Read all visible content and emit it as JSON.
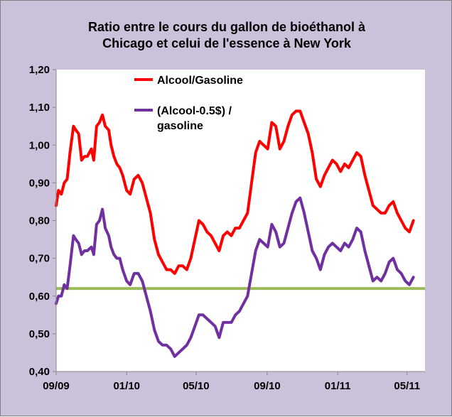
{
  "chart_data": {
    "type": "line",
    "title": [
      "Ratio entre le cours du gallon de bioéthanol  à",
      "Chicago  et celui  de l'essence à New York"
    ],
    "xlabel": "",
    "ylabel": "",
    "ylim": [
      0.4,
      1.2
    ],
    "yticks": [
      "0,40",
      "0,50",
      "0,60",
      "0,70",
      "0,80",
      "0,90",
      "1,00",
      "1,10",
      "1,20"
    ],
    "xlim": [
      "2009-09",
      "2011-06"
    ],
    "xticks": [
      "09/09",
      "01/10",
      "05/10",
      "09/10",
      "01/11",
      "05/11"
    ],
    "grid": false,
    "legend": "top-left (inside plot)",
    "reference_line": {
      "y": 0.62,
      "color": "#9bbb59"
    },
    "series": [
      {
        "name": "Alcool/Gasoline",
        "color": "#ff0000",
        "x": [
          "2009-09-01",
          "2009-09-05",
          "2009-09-10",
          "2009-09-15",
          "2009-09-20",
          "2009-09-25",
          "2009-10-01",
          "2009-10-05",
          "2009-10-10",
          "2009-10-15",
          "2009-10-20",
          "2009-10-25",
          "2009-11-01",
          "2009-11-05",
          "2009-11-10",
          "2009-11-15",
          "2009-11-20",
          "2009-11-25",
          "2009-12-01",
          "2009-12-05",
          "2009-12-10",
          "2009-12-15",
          "2009-12-20",
          "2009-12-25",
          "2010-01-01",
          "2010-01-07",
          "2010-01-14",
          "2010-01-21",
          "2010-01-28",
          "2010-02-04",
          "2010-02-11",
          "2010-02-18",
          "2010-02-25",
          "2010-03-04",
          "2010-03-11",
          "2010-03-18",
          "2010-03-25",
          "2010-04-01",
          "2010-04-08",
          "2010-04-15",
          "2010-04-22",
          "2010-04-29",
          "2010-05-06",
          "2010-05-13",
          "2010-05-20",
          "2010-05-27",
          "2010-06-03",
          "2010-06-10",
          "2010-06-17",
          "2010-06-24",
          "2010-07-01",
          "2010-07-08",
          "2010-07-15",
          "2010-07-22",
          "2010-07-29",
          "2010-08-05",
          "2010-08-12",
          "2010-08-19",
          "2010-08-26",
          "2010-09-02",
          "2010-09-09",
          "2010-09-16",
          "2010-09-23",
          "2010-09-30",
          "2010-10-07",
          "2010-10-14",
          "2010-10-21",
          "2010-10-28",
          "2010-11-04",
          "2010-11-11",
          "2010-11-18",
          "2010-11-25",
          "2010-12-02",
          "2010-12-09",
          "2010-12-16",
          "2010-12-23",
          "2010-12-30",
          "2011-01-06",
          "2011-01-13",
          "2011-01-20",
          "2011-01-27",
          "2011-02-03",
          "2011-02-10",
          "2011-02-17",
          "2011-02-24",
          "2011-03-03",
          "2011-03-10",
          "2011-03-17",
          "2011-03-24",
          "2011-03-31",
          "2011-04-07",
          "2011-04-14",
          "2011-04-21",
          "2011-04-28",
          "2011-05-05",
          "2011-05-12"
        ],
        "y": [
          0.84,
          0.88,
          0.87,
          0.9,
          0.91,
          0.98,
          1.05,
          1.04,
          1.03,
          0.96,
          0.97,
          0.97,
          0.99,
          0.96,
          1.05,
          1.06,
          1.08,
          1.05,
          1.04,
          1.0,
          0.97,
          0.95,
          0.94,
          0.92,
          0.88,
          0.87,
          0.91,
          0.92,
          0.9,
          0.86,
          0.82,
          0.75,
          0.71,
          0.69,
          0.67,
          0.67,
          0.66,
          0.68,
          0.68,
          0.67,
          0.7,
          0.75,
          0.8,
          0.79,
          0.77,
          0.76,
          0.74,
          0.72,
          0.76,
          0.77,
          0.76,
          0.78,
          0.78,
          0.8,
          0.82,
          0.9,
          0.98,
          1.01,
          1.0,
          0.99,
          1.06,
          1.05,
          0.99,
          1.01,
          1.05,
          1.08,
          1.09,
          1.09,
          1.06,
          1.03,
          0.98,
          0.91,
          0.89,
          0.92,
          0.94,
          0.96,
          0.95,
          0.93,
          0.95,
          0.94,
          0.96,
          0.98,
          0.97,
          0.92,
          0.88,
          0.84,
          0.83,
          0.82,
          0.82,
          0.84,
          0.85,
          0.82,
          0.8,
          0.78,
          0.77,
          0.8
        ]
      },
      {
        "name": "(Alcool-0.5$) / gasoline",
        "color": "#7030a0",
        "x": [
          "2009-09-01",
          "2009-09-05",
          "2009-09-10",
          "2009-09-15",
          "2009-09-20",
          "2009-09-25",
          "2009-10-01",
          "2009-10-05",
          "2009-10-10",
          "2009-10-15",
          "2009-10-20",
          "2009-10-25",
          "2009-11-01",
          "2009-11-05",
          "2009-11-10",
          "2009-11-15",
          "2009-11-20",
          "2009-11-25",
          "2009-12-01",
          "2009-12-05",
          "2009-12-10",
          "2009-12-15",
          "2009-12-20",
          "2009-12-25",
          "2010-01-01",
          "2010-01-07",
          "2010-01-14",
          "2010-01-21",
          "2010-01-28",
          "2010-02-04",
          "2010-02-11",
          "2010-02-18",
          "2010-02-25",
          "2010-03-04",
          "2010-03-11",
          "2010-03-18",
          "2010-03-25",
          "2010-04-01",
          "2010-04-08",
          "2010-04-15",
          "2010-04-22",
          "2010-04-29",
          "2010-05-06",
          "2010-05-13",
          "2010-05-20",
          "2010-05-27",
          "2010-06-03",
          "2010-06-10",
          "2010-06-17",
          "2010-06-24",
          "2010-07-01",
          "2010-07-08",
          "2010-07-15",
          "2010-07-22",
          "2010-07-29",
          "2010-08-05",
          "2010-08-12",
          "2010-08-19",
          "2010-08-26",
          "2010-09-02",
          "2010-09-09",
          "2010-09-16",
          "2010-09-23",
          "2010-09-30",
          "2010-10-07",
          "2010-10-14",
          "2010-10-21",
          "2010-10-28",
          "2010-11-04",
          "2010-11-11",
          "2010-11-18",
          "2010-11-25",
          "2010-12-02",
          "2010-12-09",
          "2010-12-16",
          "2010-12-23",
          "2010-12-30",
          "2011-01-06",
          "2011-01-13",
          "2011-01-20",
          "2011-01-27",
          "2011-02-03",
          "2011-02-10",
          "2011-02-17",
          "2011-02-24",
          "2011-03-03",
          "2011-03-10",
          "2011-03-17",
          "2011-03-24",
          "2011-03-31",
          "2011-04-07",
          "2011-04-14",
          "2011-04-21",
          "2011-04-28",
          "2011-05-05",
          "2011-05-12"
        ],
        "y": [
          0.58,
          0.6,
          0.6,
          0.63,
          0.62,
          0.68,
          0.76,
          0.75,
          0.74,
          0.71,
          0.72,
          0.72,
          0.73,
          0.71,
          0.79,
          0.8,
          0.83,
          0.78,
          0.76,
          0.73,
          0.71,
          0.7,
          0.7,
          0.67,
          0.64,
          0.63,
          0.66,
          0.66,
          0.64,
          0.6,
          0.56,
          0.51,
          0.48,
          0.47,
          0.47,
          0.46,
          0.44,
          0.45,
          0.46,
          0.47,
          0.49,
          0.52,
          0.55,
          0.55,
          0.54,
          0.53,
          0.52,
          0.49,
          0.53,
          0.53,
          0.53,
          0.55,
          0.56,
          0.58,
          0.6,
          0.66,
          0.72,
          0.75,
          0.74,
          0.73,
          0.79,
          0.77,
          0.73,
          0.74,
          0.78,
          0.82,
          0.85,
          0.86,
          0.82,
          0.77,
          0.72,
          0.7,
          0.67,
          0.71,
          0.73,
          0.74,
          0.73,
          0.72,
          0.74,
          0.73,
          0.75,
          0.78,
          0.77,
          0.72,
          0.68,
          0.64,
          0.65,
          0.64,
          0.66,
          0.69,
          0.7,
          0.67,
          0.66,
          0.64,
          0.63,
          0.65
        ]
      }
    ]
  },
  "legend": {
    "items": [
      {
        "lines": [
          "Alcool/Gasoline"
        ],
        "color": "#ff0000"
      },
      {
        "lines": [
          "(Alcool-0.5$) /",
          "gasoline"
        ],
        "color": "#7030a0"
      }
    ]
  },
  "colors": {
    "background": "#ccc1da",
    "plot_area": "#ffffff",
    "reference_line": "#9bbb59"
  }
}
